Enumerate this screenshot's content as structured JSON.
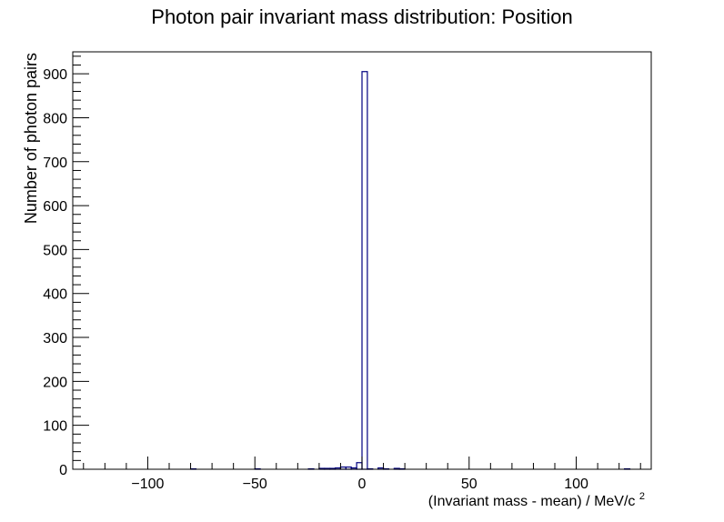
{
  "chart_data": {
    "type": "bar",
    "title": "Photon pair invariant mass distribution: Position",
    "xlabel": "(Invariant mass - mean) / MeV/c",
    "xlabel_superscript": "2",
    "ylabel": "Number of photon pairs",
    "xlim": [
      -135,
      135
    ],
    "ylim": [
      0,
      950
    ],
    "grid": false,
    "legend": "none",
    "x_ticks": [
      -100,
      -50,
      0,
      50,
      100
    ],
    "x_tick_labels": [
      "−100",
      "−50",
      "0",
      "50",
      "100"
    ],
    "y_ticks": [
      0,
      100,
      200,
      300,
      400,
      500,
      600,
      700,
      800,
      900
    ],
    "y_tick_labels": [
      "0",
      "100",
      "200",
      "300",
      "400",
      "500",
      "600",
      "700",
      "800",
      "900"
    ],
    "bin_width": 2.5,
    "bins": [
      {
        "x_low": -80,
        "value": 1
      },
      {
        "x_low": -50,
        "value": 1
      },
      {
        "x_low": -25,
        "value": 1
      },
      {
        "x_low": -20,
        "value": 2
      },
      {
        "x_low": -17.5,
        "value": 2
      },
      {
        "x_low": -15,
        "value": 2
      },
      {
        "x_low": -12.5,
        "value": 3
      },
      {
        "x_low": -10,
        "value": 5
      },
      {
        "x_low": -7.5,
        "value": 5
      },
      {
        "x_low": -5,
        "value": 3
      },
      {
        "x_low": -2.5,
        "value": 15
      },
      {
        "x_low": 0,
        "value": 905
      },
      {
        "x_low": 2.5,
        "value": 1
      },
      {
        "x_low": 7.5,
        "value": 3
      },
      {
        "x_low": 10,
        "value": 1
      },
      {
        "x_low": 15,
        "value": 2
      },
      {
        "x_low": 17.5,
        "value": 1
      },
      {
        "x_low": 122.5,
        "value": 1
      }
    ],
    "line_color": "#000080"
  }
}
